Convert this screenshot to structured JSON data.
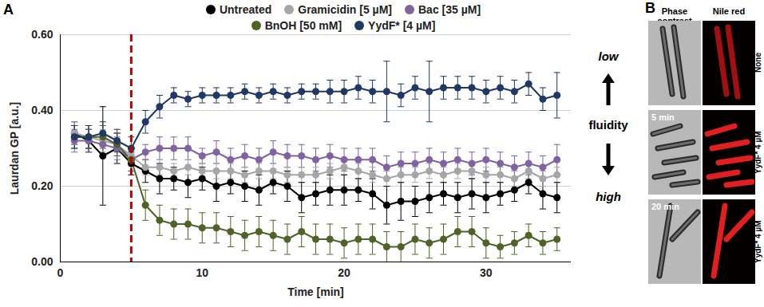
{
  "chart_data": {
    "type": "line",
    "panel": "A",
    "x_label": "Time [min]",
    "y_label": "Laurdan GP [a.u.]",
    "xlim": [
      0,
      36
    ],
    "xticks": [
      0,
      10,
      20,
      30
    ],
    "ylim": [
      0,
      0.6
    ],
    "yticks": [
      {
        "value": 0,
        "label": "0.00"
      },
      {
        "value": 0.2,
        "label": "0.20"
      },
      {
        "value": 0.4,
        "label": "0.40"
      },
      {
        "value": 0.6,
        "label": "0.60"
      }
    ],
    "grid": true,
    "marker": "circle",
    "legend": "top",
    "vertical_line": {
      "x": 5,
      "color": "#c00000",
      "line_style": "dashed"
    },
    "annotations": [
      "low",
      "fluidity",
      "high"
    ],
    "x": [
      1,
      2,
      3,
      4,
      5,
      6,
      7,
      8,
      9,
      10,
      11,
      12,
      13,
      14,
      15,
      16,
      17,
      18,
      19,
      20,
      21,
      22,
      23,
      24,
      25,
      26,
      27,
      28,
      29,
      30,
      31,
      32,
      33,
      34,
      35
    ],
    "series": [
      {
        "name": "Untreated",
        "color": "#000000",
        "values": [
          0.34,
          0.32,
          0.28,
          0.3,
          0.26,
          0.24,
          0.22,
          0.22,
          0.21,
          0.22,
          0.2,
          0.21,
          0.2,
          0.19,
          0.21,
          0.2,
          0.17,
          0.18,
          0.19,
          0.19,
          0.19,
          0.18,
          0.15,
          0.16,
          0.16,
          0.17,
          0.18,
          0.17,
          0.18,
          0.17,
          0.18,
          0.19,
          0.21,
          0.18,
          0.17
        ],
        "errors": [
          0.03,
          0.03,
          0.13,
          0.04,
          0.03,
          0.03,
          0.04,
          0.03,
          0.04,
          0.03,
          0.04,
          0.03,
          0.04,
          0.04,
          0.03,
          0.04,
          0.04,
          0.03,
          0.04,
          0.04,
          0.03,
          0.04,
          0.05,
          0.05,
          0.04,
          0.04,
          0.03,
          0.04,
          0.04,
          0.04,
          0.03,
          0.03,
          0.03,
          0.04,
          0.04
        ]
      },
      {
        "name": "Gramicidin [5 µM]",
        "color": "#a6a6a6",
        "values": [
          0.34,
          0.33,
          0.32,
          0.31,
          0.28,
          0.25,
          0.25,
          0.24,
          0.25,
          0.24,
          0.24,
          0.24,
          0.23,
          0.24,
          0.24,
          0.23,
          0.23,
          0.23,
          0.24,
          0.25,
          0.24,
          0.23,
          0.22,
          0.23,
          0.23,
          0.24,
          0.23,
          0.24,
          0.24,
          0.23,
          0.23,
          0.22,
          0.24,
          0.22,
          0.23
        ],
        "errors": [
          0.03,
          0.03,
          0.03,
          0.03,
          0.02,
          0.02,
          0.02,
          0.02,
          0.02,
          0.02,
          0.02,
          0.02,
          0.02,
          0.02,
          0.02,
          0.02,
          0.02,
          0.02,
          0.02,
          0.02,
          0.02,
          0.02,
          0.02,
          0.02,
          0.02,
          0.02,
          0.02,
          0.02,
          0.02,
          0.02,
          0.02,
          0.02,
          0.02,
          0.02,
          0.02
        ]
      },
      {
        "name": "Bac [35 µM]",
        "color": "#8064a2",
        "values": [
          0.32,
          0.32,
          0.31,
          0.3,
          0.27,
          0.29,
          0.3,
          0.3,
          0.3,
          0.28,
          0.29,
          0.27,
          0.28,
          0.27,
          0.29,
          0.28,
          0.28,
          0.27,
          0.28,
          0.27,
          0.27,
          0.27,
          0.25,
          0.26,
          0.26,
          0.27,
          0.26,
          0.27,
          0.26,
          0.27,
          0.26,
          0.25,
          0.26,
          0.25,
          0.27
        ],
        "errors": [
          0.03,
          0.03,
          0.03,
          0.03,
          0.03,
          0.02,
          0.03,
          0.03,
          0.03,
          0.02,
          0.03,
          0.03,
          0.03,
          0.03,
          0.03,
          0.03,
          0.03,
          0.03,
          0.03,
          0.03,
          0.03,
          0.03,
          0.03,
          0.03,
          0.03,
          0.03,
          0.03,
          0.03,
          0.03,
          0.03,
          0.03,
          0.03,
          0.03,
          0.03,
          0.04
        ]
      },
      {
        "name": "BnOH [50 mM]",
        "color": "#4f6228",
        "values": [
          0.33,
          0.33,
          0.33,
          0.31,
          0.27,
          0.15,
          0.11,
          0.1,
          0.1,
          0.09,
          0.09,
          0.08,
          0.07,
          0.08,
          0.07,
          0.06,
          0.08,
          0.06,
          0.06,
          0.05,
          0.06,
          0.06,
          0.04,
          0.04,
          0.06,
          0.05,
          0.06,
          0.08,
          0.08,
          0.05,
          0.04,
          0.05,
          0.07,
          0.05,
          0.06
        ],
        "errors": [
          0.03,
          0.03,
          0.03,
          0.03,
          0.03,
          0.04,
          0.04,
          0.04,
          0.04,
          0.04,
          0.04,
          0.04,
          0.04,
          0.04,
          0.04,
          0.04,
          0.04,
          0.04,
          0.04,
          0.04,
          0.04,
          0.04,
          0.04,
          0.04,
          0.04,
          0.04,
          0.04,
          0.04,
          0.04,
          0.04,
          0.03,
          0.03,
          0.03,
          0.03,
          0.03
        ]
      },
      {
        "name": "YydF* [4 µM]",
        "color": "#1f3864",
        "values": [
          0.33,
          0.33,
          0.34,
          0.32,
          0.3,
          0.37,
          0.41,
          0.44,
          0.43,
          0.44,
          0.44,
          0.44,
          0.45,
          0.44,
          0.45,
          0.44,
          0.45,
          0.45,
          0.45,
          0.45,
          0.46,
          0.45,
          0.45,
          0.44,
          0.46,
          0.45,
          0.46,
          0.46,
          0.46,
          0.45,
          0.46,
          0.45,
          0.47,
          0.43,
          0.44
        ],
        "errors": [
          0.03,
          0.03,
          0.03,
          0.03,
          0.03,
          0.03,
          0.03,
          0.02,
          0.02,
          0.02,
          0.02,
          0.02,
          0.02,
          0.02,
          0.02,
          0.02,
          0.02,
          0.02,
          0.03,
          0.03,
          0.03,
          0.03,
          0.08,
          0.03,
          0.03,
          0.08,
          0.03,
          0.03,
          0.03,
          0.03,
          0.03,
          0.03,
          0.03,
          0.03,
          0.06
        ]
      }
    ]
  },
  "panel_b": {
    "panel": "B",
    "columns": [
      "Phase contrast",
      "Nile red"
    ],
    "rows": [
      {
        "label": "None"
      },
      {
        "label": "YydF* 4 µM",
        "time": "5 min"
      },
      {
        "label": "YydF* 4 µM",
        "time": "20 min"
      }
    ]
  }
}
